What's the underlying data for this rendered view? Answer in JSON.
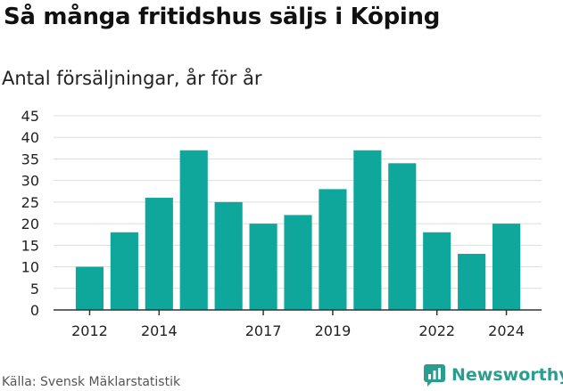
{
  "header": {
    "title": "Så många fritidshus säljs i Köping",
    "subtitle": "Antal försäljningar, år för år"
  },
  "footer": {
    "source": "Källa: Svensk Mäklarstatistik",
    "brand": "Newsworthy"
  },
  "colors": {
    "bar": "#0fa69b",
    "grid": "#dddddd",
    "axis": "#333333",
    "brand": "#2a9d8f"
  },
  "chart_data": {
    "type": "bar",
    "categories": [
      2012,
      2013,
      2014,
      2015,
      2016,
      2017,
      2018,
      2019,
      2020,
      2021,
      2022,
      2023,
      2024
    ],
    "values": [
      10,
      18,
      26,
      37,
      25,
      20,
      22,
      28,
      37,
      34,
      18,
      13,
      20
    ],
    "x_tick_labels": [
      "2012",
      "2014",
      "2017",
      "2019",
      "2022",
      "2024"
    ],
    "y_ticks": [
      0,
      5,
      10,
      15,
      20,
      25,
      30,
      35,
      40,
      45
    ],
    "ylim": [
      0,
      45
    ],
    "grid": true,
    "title": "Så många fritidshus säljs i Köping",
    "subtitle": "Antal försäljningar, år för år"
  }
}
